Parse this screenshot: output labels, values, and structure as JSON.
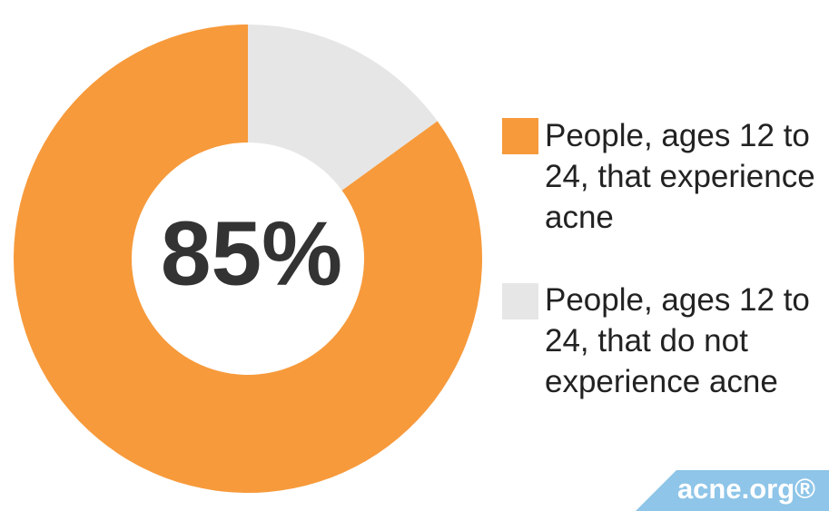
{
  "chart_data": {
    "type": "pie",
    "categories": [
      "People, ages 12 to 24, that experience acne",
      "People, ages 12 to 24, that do not experience acne"
    ],
    "values": [
      85,
      15
    ],
    "colors": [
      "#f79a3b",
      "#e6e6e6"
    ],
    "center_text": "85%",
    "watermark": "acne.org®"
  }
}
